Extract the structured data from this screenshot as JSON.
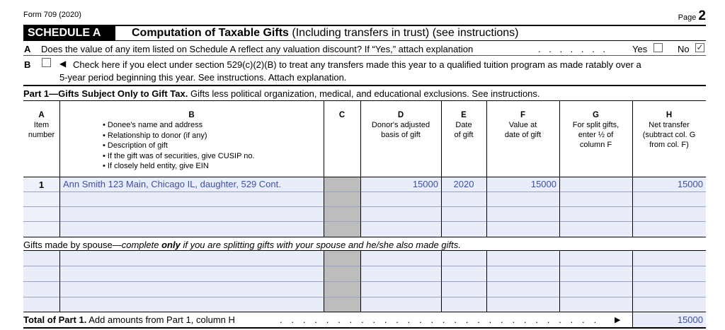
{
  "form_id": "Form 709 (2020)",
  "page_label": "Page",
  "page_number": "2",
  "schedule": {
    "tag": "SCHEDULE A",
    "title_bold": "Computation of Taxable Gifts",
    "title_rest": "(Including transfers in trust) (see instructions)"
  },
  "line_a": {
    "letter": "A",
    "text": "Does the value of any item listed on Schedule A reflect any valuation discount? If “Yes,” attach explanation",
    "dots": ". . . . . . .",
    "yes_label": "Yes",
    "no_label": "No",
    "yes_checked": false,
    "no_checked": true
  },
  "line_b": {
    "letter": "B",
    "arrow": "◀",
    "text1": "Check here if you elect under section 529(c)(2)(B) to treat any transfers made this year to a qualified tuition program as made ratably over a",
    "text2": "5-year period beginning this year. See instructions. Attach explanation.",
    "checked": false
  },
  "part1": {
    "title_bold": "Part 1—Gifts Subject Only to Gift Tax.",
    "title_rest": "Gifts less political organization, medical, and educational exclusions. See instructions."
  },
  "columns": {
    "a": {
      "letter": "A",
      "lines": [
        "Item",
        "number"
      ]
    },
    "b": {
      "letter": "B",
      "bullets": [
        "• Donee's name and address",
        "• Relationship to donor (if any)",
        "• Description of gift",
        "• If the gift was of securities, give CUSIP no.",
        "• If closely held entity, give EIN"
      ]
    },
    "c": {
      "letter": "C"
    },
    "d": {
      "letter": "D",
      "lines": [
        "Donor's adjusted",
        "basis of gift"
      ]
    },
    "e": {
      "letter": "E",
      "lines": [
        "Date",
        "of gift"
      ]
    },
    "f": {
      "letter": "F",
      "lines": [
        "Value at",
        "date of gift"
      ]
    },
    "g": {
      "letter": "G",
      "lines": [
        "For split gifts,",
        "enter ½ of",
        "column F"
      ]
    },
    "h": {
      "letter": "H",
      "lines": [
        "Net transfer",
        "(subtract col. G",
        "from col. F)"
      ]
    }
  },
  "rows": [
    {
      "item": "1",
      "donee": "Ann Smith 123 Main, Chicago IL, daughter, 529 Cont.",
      "basis": "15000",
      "date": "2020",
      "value": "15000",
      "split": "",
      "net": "15000"
    }
  ],
  "spouse_section": {
    "pre": "Gifts made by spouse—",
    "italic1": "complete ",
    "italic_bold": "only",
    "italic2": " if you are splitting gifts with your spouse and he/she also made gifts."
  },
  "total": {
    "label_bold": "Total of Part 1.",
    "label_rest": "Add amounts from Part 1, column H",
    "dots": ". . . . . . . . . . . . . . . . . . . . . . . . . . . .",
    "arrow": "▶",
    "value": "15000"
  }
}
